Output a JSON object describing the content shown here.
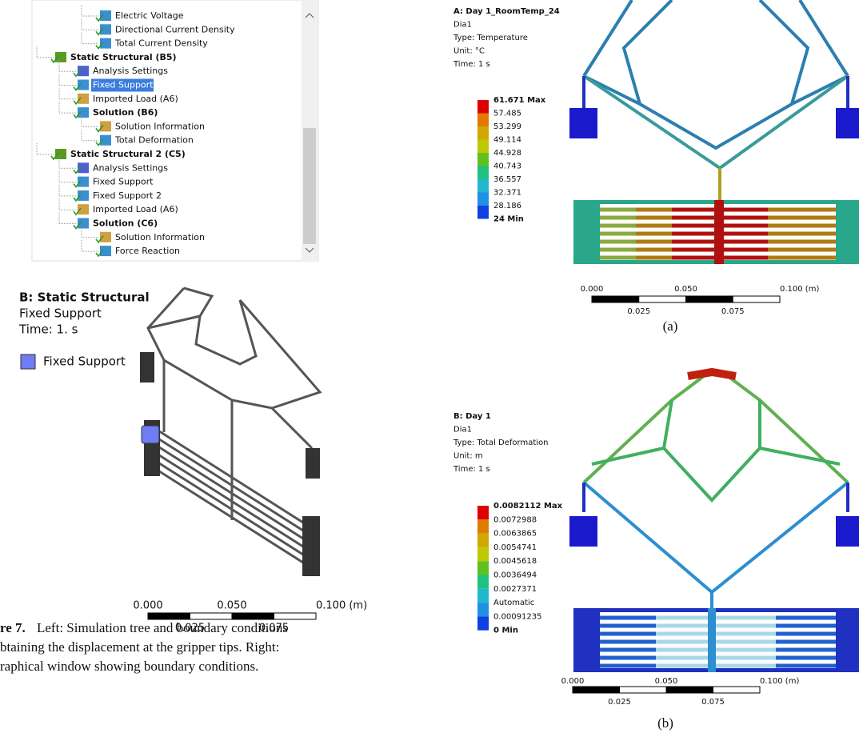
{
  "tree": {
    "items": [
      "Electric Voltage",
      "Directional Current Density",
      "Total Current Density",
      "Static Structural (B5)",
      "Analysis Settings",
      "Fixed Support",
      "Imported Load (A6)",
      "Solution (B6)",
      "Solution Information",
      "Total Deformation",
      "Static Structural 2 (C5)",
      "Analysis Settings",
      "Fixed Support",
      "Fixed Support 2",
      "Imported Load (A6)",
      "Solution (C6)",
      "Solution Information",
      "Force Reaction"
    ]
  },
  "boundary_view": {
    "title": "B: Static Structural",
    "lines": [
      "Fixed Support",
      "Time: 1. s"
    ],
    "legend": "Fixed Support",
    "scale": {
      "top": [
        "0.000",
        "0.050",
        "0.100 (m)"
      ],
      "bottom": [
        "0.025",
        "0.075"
      ]
    }
  },
  "caption": {
    "label": "re 7.",
    "lines": [
      "Left: Simulation tree and boundary conditions",
      "btaining the displacement at the gripper tips. Right:",
      "raphical window showing boundary conditions."
    ]
  },
  "panel_a": {
    "title": "A: Day 1_RoomTemp_24",
    "lines": [
      "Dia1",
      "Type: Temperature",
      "Unit: °C",
      "Time: 1 s"
    ],
    "legend": [
      "61.671 Max",
      "57.485",
      "53.299",
      "49.114",
      "44.928",
      "40.743",
      "36.557",
      "32.371",
      "28.186",
      "24 Min"
    ],
    "scale": {
      "top": [
        "0.000",
        "0.050",
        "0.100 (m)"
      ],
      "bottom": [
        "0.025",
        "0.075"
      ]
    },
    "label": "(a)"
  },
  "panel_b": {
    "title": "B: Day 1",
    "lines": [
      "Dia1",
      "Type: Total Deformation",
      "Unit: m",
      "Time: 1 s"
    ],
    "legend": [
      "0.0082112 Max",
      "0.0072988",
      "0.0063865",
      "0.0054741",
      "0.0045618",
      "0.0036494",
      "0.0027371",
      "Automatic",
      "0.00091235",
      "0 Min"
    ],
    "scale": {
      "top": [
        "0.000",
        "0.050",
        "0.100 (m)"
      ],
      "bottom": [
        "0.025",
        "0.075"
      ]
    },
    "label": "(b)"
  }
}
